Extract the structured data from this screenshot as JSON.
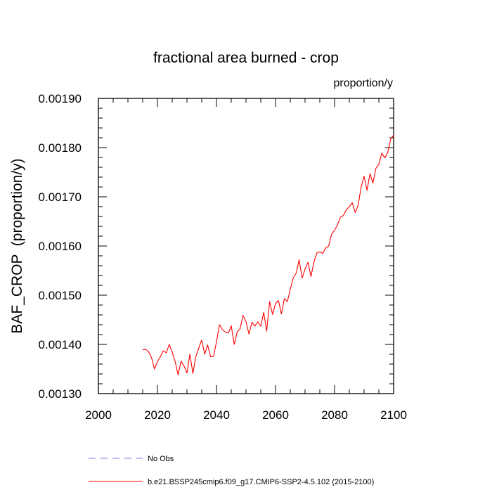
{
  "chart_data": {
    "type": "line",
    "title": "fractional area burned - crop",
    "units_label": "proportion/y",
    "xlabel": "",
    "ylabel": "BAF_CROP  (proportion/y)",
    "xlim": [
      2000,
      2100
    ],
    "ylim": [
      0.0013,
      0.0019
    ],
    "x_ticks": [
      2000,
      2020,
      2040,
      2060,
      2080,
      2100
    ],
    "x_tick_labels": [
      "2000",
      "2020",
      "2040",
      "2060",
      "2080",
      "2100"
    ],
    "y_ticks": [
      0.0013,
      0.0014,
      0.0015,
      0.0016,
      0.0017,
      0.0018,
      0.0019
    ],
    "y_tick_labels": [
      "0.00130",
      "0.00140",
      "0.00150",
      "0.00160",
      "0.00170",
      "0.00180",
      "0.00190"
    ],
    "series": [
      {
        "name": "b.e21.BSSP245cmip6.f09_g17.CMIP6-SSP2-4.5.102 (2015-2100)",
        "color": "#ff0000",
        "x": [
          2015,
          2016,
          2017,
          2018,
          2019,
          2020,
          2021,
          2022,
          2023,
          2024,
          2025,
          2026,
          2027,
          2028,
          2029,
          2030,
          2031,
          2032,
          2033,
          2034,
          2035,
          2036,
          2037,
          2038,
          2039,
          2040,
          2041,
          2042,
          2043,
          2044,
          2045,
          2046,
          2047,
          2048,
          2049,
          2050,
          2051,
          2052,
          2053,
          2054,
          2055,
          2056,
          2057,
          2058,
          2059,
          2060,
          2061,
          2062,
          2063,
          2064,
          2065,
          2066,
          2067,
          2068,
          2069,
          2070,
          2071,
          2072,
          2073,
          2074,
          2075,
          2076,
          2077,
          2078,
          2079,
          2080,
          2081,
          2082,
          2083,
          2084,
          2085,
          2086,
          2087,
          2088,
          2089,
          2090,
          2091,
          2092,
          2093,
          2094,
          2095,
          2096,
          2097,
          2098,
          2099,
          2100
        ],
        "values": [
          0.001389,
          0.00139,
          0.001385,
          0.001373,
          0.00135,
          0.001365,
          0.001375,
          0.001387,
          0.001383,
          0.0014,
          0.001384,
          0.001365,
          0.001338,
          0.001366,
          0.001356,
          0.001342,
          0.00138,
          0.001341,
          0.001375,
          0.001393,
          0.001409,
          0.00138,
          0.001399,
          0.001375,
          0.001376,
          0.001405,
          0.00144,
          0.00143,
          0.001425,
          0.001423,
          0.001438,
          0.0014,
          0.001425,
          0.001432,
          0.001459,
          0.001446,
          0.001421,
          0.001445,
          0.001437,
          0.001446,
          0.001437,
          0.001465,
          0.001427,
          0.001487,
          0.001461,
          0.001483,
          0.001489,
          0.001462,
          0.001493,
          0.001487,
          0.001512,
          0.001535,
          0.001545,
          0.001572,
          0.001535,
          0.001553,
          0.001567,
          0.001538,
          0.001567,
          0.001586,
          0.001588,
          0.001585,
          0.001596,
          0.0016,
          0.001624,
          0.001632,
          0.001643,
          0.001659,
          0.001662,
          0.001674,
          0.00168,
          0.001688,
          0.001668,
          0.001683,
          0.00172,
          0.001742,
          0.001713,
          0.001747,
          0.001728,
          0.001758,
          0.001766,
          0.001789,
          0.001779,
          0.00179,
          0.001817,
          0.001825
        ]
      }
    ],
    "legend": [
      {
        "label": "No Obs",
        "color": "#8080ff",
        "style": "dashed"
      },
      {
        "label": "b.e21.BSSP245cmip6.f09_g17.CMIP6-SSP2-4.5.102 (2015-2100)",
        "color": "#ff0000",
        "style": "solid"
      }
    ],
    "grid": false
  }
}
